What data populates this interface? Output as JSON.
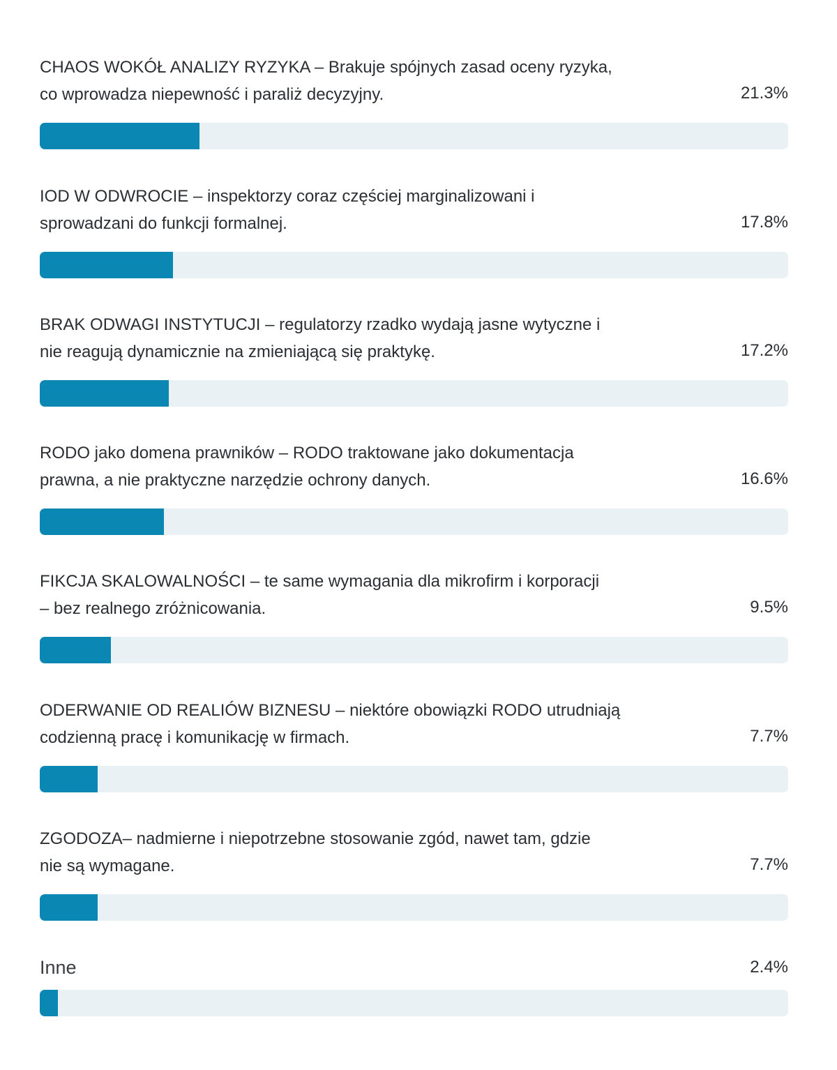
{
  "chart_data": {
    "type": "bar",
    "orientation": "horizontal",
    "xlim": [
      0,
      100
    ],
    "bar_color": "#0b87b3",
    "track_color": "#eaf1f4",
    "items": [
      {
        "label": "CHAOS WOKÓŁ ANALIZY RYZYKA – Brakuje spójnych zasad oceny ryzyka,\nco wprowadza niepewność i paraliż decyzyjny.",
        "value": 21.3,
        "value_label": "21.3%"
      },
      {
        "label": "IOD W ODWROCIE – inspektorzy coraz częściej marginalizowani i\nsprowadzani do funkcji formalnej.",
        "value": 17.8,
        "value_label": "17.8%"
      },
      {
        "label": "BRAK ODWAGI INSTYTUCJI – regulatorzy rzadko wydają jasne wytyczne i\nnie reagują dynamicznie na zmieniającą się praktykę.",
        "value": 17.2,
        "value_label": "17.2%"
      },
      {
        "label": "RODO jako domena prawników – RODO traktowane jako dokumentacja\nprawna, a nie praktyczne narzędzie ochrony danych.",
        "value": 16.6,
        "value_label": "16.6%"
      },
      {
        "label": "FIKCJA SKALOWALNOŚCI – te same wymagania dla mikrofirm i korporacji\n– bez realnego zróżnicowania.",
        "value": 9.5,
        "value_label": "9.5%"
      },
      {
        "label": "ODERWANIE OD REALIÓW BIZNESU – niektóre obowiązki RODO utrudniają\ncodzienną pracę i komunikację w firmach.",
        "value": 7.7,
        "value_label": "7.7%"
      },
      {
        "label": "ZGODOZA– nadmierne i niepotrzebne stosowanie zgód, nawet tam, gdzie\nnie są wymagane.",
        "value": 7.7,
        "value_label": "7.7%"
      },
      {
        "label": "Inne",
        "value": 2.4,
        "value_label": "2.4%"
      }
    ]
  }
}
